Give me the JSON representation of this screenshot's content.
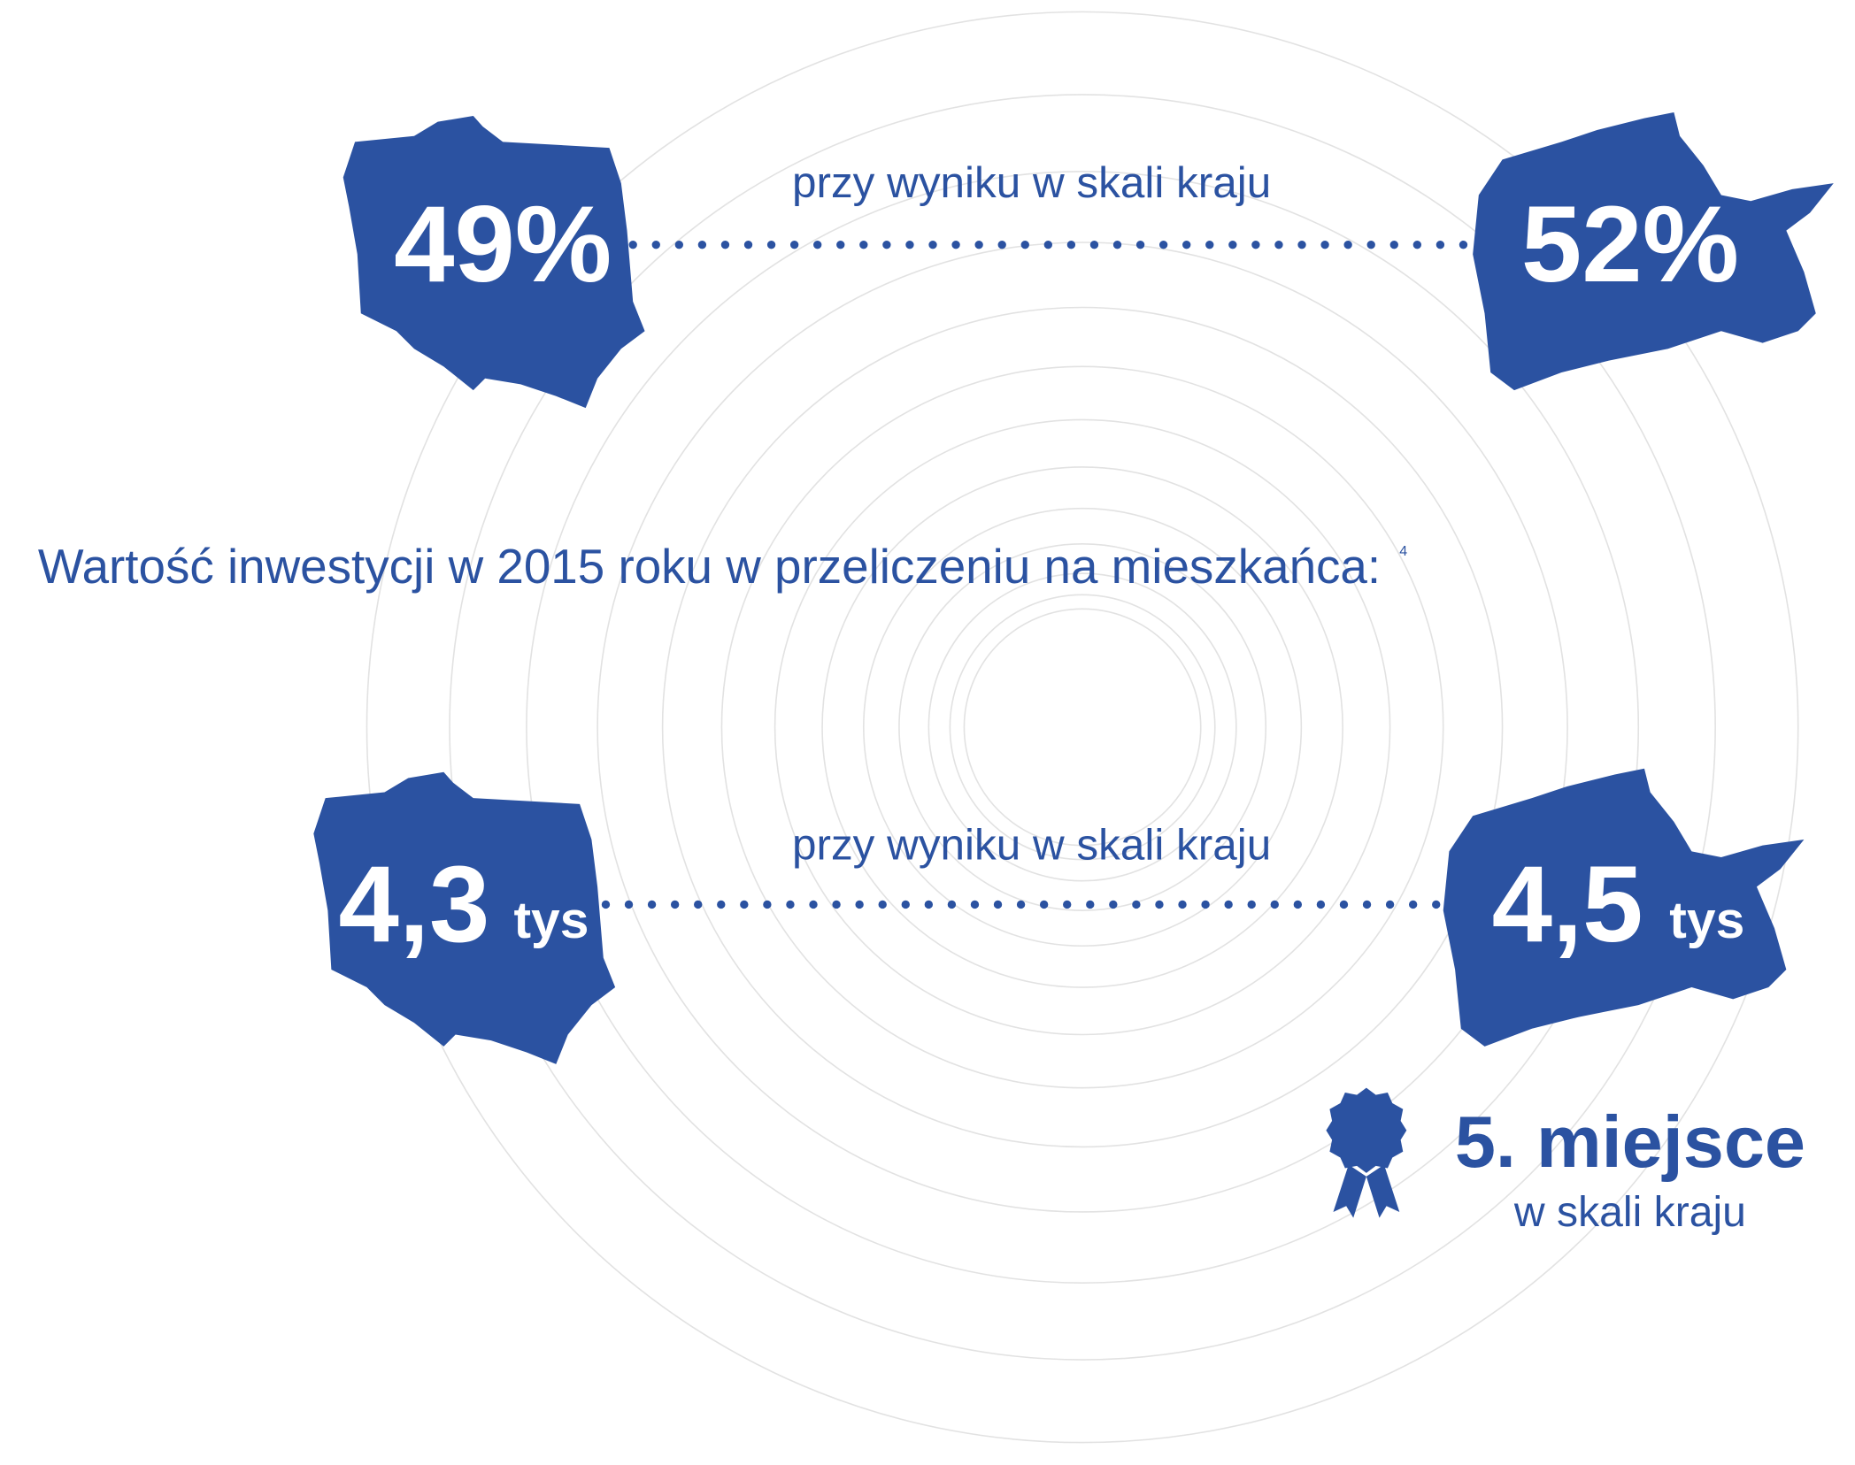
{
  "sections": [
    {
      "caption": "przy wyniku w skali kraju",
      "poland_value": "49%",
      "region_value": "52%"
    },
    {
      "caption": "przy wyniku w skali kraju",
      "poland_value": "4,3",
      "poland_unit": "tys",
      "region_value": "4,5",
      "region_unit": "tys"
    }
  ],
  "heading": "Wartość inwestycji w 2015 roku w przeliczeniu na mieszkańca:",
  "heading_note": "4",
  "rank": {
    "title": "5. miejsce",
    "subtitle": "w skali kraju"
  }
}
